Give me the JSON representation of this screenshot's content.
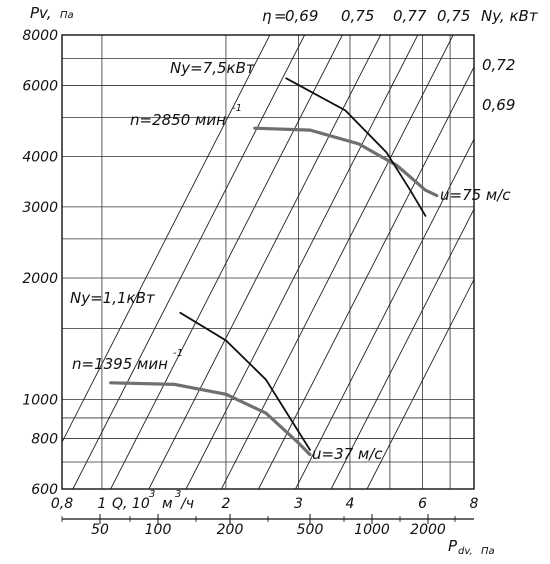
{
  "chart_data": {
    "type": "line",
    "title": "",
    "y_axis": {
      "label": "Pv,",
      "unit": "Па",
      "scale": "log",
      "range": [
        600,
        8000
      ],
      "ticks": [
        "8000",
        "6000",
        "4000",
        "3000",
        "2000",
        "1000",
        "800",
        "600"
      ],
      "tick_values": [
        8000,
        6000,
        4000,
        3000,
        2000,
        1000,
        800,
        600
      ]
    },
    "x_axis": {
      "label": "Q, 10",
      "exp": "3",
      "unit": "м",
      "unit_exp": "3",
      "unit_tail": "/ч",
      "scale": "log",
      "range": [
        0.8,
        8
      ],
      "ticks": [
        "0,8",
        "1",
        "2",
        "3",
        "4",
        "6",
        "8"
      ],
      "tick_values": [
        0.8,
        1,
        2,
        3,
        4,
        6,
        8
      ]
    },
    "secondary_x_axis": {
      "label": "P",
      "label_sub": "dv,",
      "unit": "Па",
      "ticks": [
        "50",
        "100",
        "200",
        "500",
        "1000",
        "2000"
      ],
      "tick_values": [
        50,
        100,
        200,
        500,
        1000,
        2000
      ]
    },
    "efficiency": {
      "eta_symbol": "η",
      "eta_equals": "=",
      "top_labels": [
        "0,69",
        "0,75",
        "0,77",
        "0,75"
      ],
      "right_labels": [
        "0,72",
        "0,69"
      ]
    },
    "power_axis_label": "Ny, кВт",
    "series": [
      {
        "name": "n=1395 мин",
        "superscript": "-1",
        "kind": "pressure",
        "points": [
          [
            1.05,
            1100
          ],
          [
            1.5,
            1090
          ],
          [
            2.0,
            1030
          ],
          [
            2.5,
            925
          ],
          [
            3.0,
            780
          ],
          [
            3.2,
            730
          ]
        ]
      },
      {
        "name": "n=2850 мин",
        "superscript": "-1",
        "kind": "pressure",
        "points": [
          [
            2.35,
            4700
          ],
          [
            3.2,
            4650
          ],
          [
            4.2,
            4300
          ],
          [
            5.2,
            3800
          ],
          [
            6.1,
            3300
          ],
          [
            6.5,
            3200
          ]
        ]
      },
      {
        "name": "Ny=1,1кВт",
        "kind": "power",
        "points": [
          [
            1.55,
            1640
          ],
          [
            2.0,
            1400
          ],
          [
            2.5,
            1120
          ],
          [
            2.9,
            880
          ],
          [
            3.2,
            750
          ]
        ]
      },
      {
        "name": "Ny=7,5кВт",
        "kind": "power",
        "points": [
          [
            2.8,
            6250
          ],
          [
            3.9,
            5200
          ],
          [
            4.9,
            4100
          ],
          [
            5.6,
            3300
          ],
          [
            6.1,
            2850
          ]
        ]
      }
    ],
    "annotations": {
      "speed_low": "u=37 м/с",
      "speed_high": "u=75 м/с"
    },
    "grid": true
  }
}
